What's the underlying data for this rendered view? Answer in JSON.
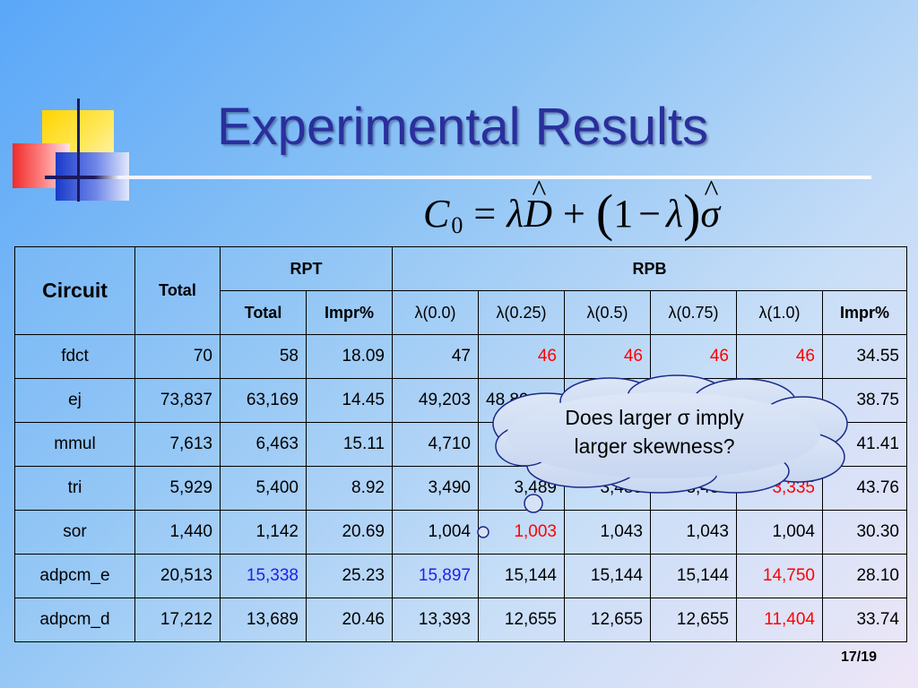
{
  "title": "Experimental Results",
  "formula": {
    "c": "C",
    "sub": "0",
    "eq": "=",
    "lambda": "λ",
    "d": "D",
    "hat": "^",
    "plus": "+",
    "lparen": "(",
    "one": "1",
    "minus": "−",
    "rparen": ")",
    "sigma": "σ"
  },
  "table": {
    "header": {
      "circuit": "Circuit",
      "total": "Total",
      "rpt": "RPT",
      "rpb": "RPB",
      "sub": [
        "Total",
        "Impr%",
        "λ(0.0)",
        "λ(0.25)",
        "λ(0.5)",
        "λ(0.75)",
        "λ(1.0)",
        "Impr%"
      ]
    },
    "rows": [
      {
        "name": "fdct",
        "cells": [
          "70",
          "58",
          "18.09",
          "47",
          "46",
          "46",
          "46",
          "46",
          "34.55"
        ]
      },
      {
        "name": "ej",
        "cells": [
          "73,837",
          "63,169",
          "14.45",
          "49,203",
          "48,89",
          "",
          "",
          "",
          "38.75"
        ]
      },
      {
        "name": "mmul",
        "cells": [
          "7,613",
          "6,463",
          "15.11",
          "4,710",
          "",
          "",
          "",
          "",
          "41.41"
        ]
      },
      {
        "name": "tri",
        "cells": [
          "5,929",
          "5,400",
          "8.92",
          "3,490",
          "3,489",
          "3,489",
          "3,489",
          "3,335",
          "43.76"
        ]
      },
      {
        "name": "sor",
        "cells": [
          "1,440",
          "1,142",
          "20.69",
          "1,004",
          "1,003",
          "1,043",
          "1,043",
          "1,004",
          "30.30"
        ]
      },
      {
        "name": "adpcm_e",
        "cells": [
          "20,513",
          "15,338",
          "25.23",
          "15,897",
          "15,144",
          "15,144",
          "15,144",
          "14,750",
          "28.10"
        ]
      },
      {
        "name": "adpcm_d",
        "cells": [
          "17,212",
          "13,689",
          "20.46",
          "13,393",
          "12,655",
          "12,655",
          "12,655",
          "11,404",
          "33.74"
        ]
      }
    ],
    "highlight_colors": {
      "red": "#ff0000",
      "blue": "#2020e6"
    }
  },
  "callout": {
    "line1": "Does larger σ imply",
    "line2": "larger skewness?"
  },
  "page_number": "17/19"
}
